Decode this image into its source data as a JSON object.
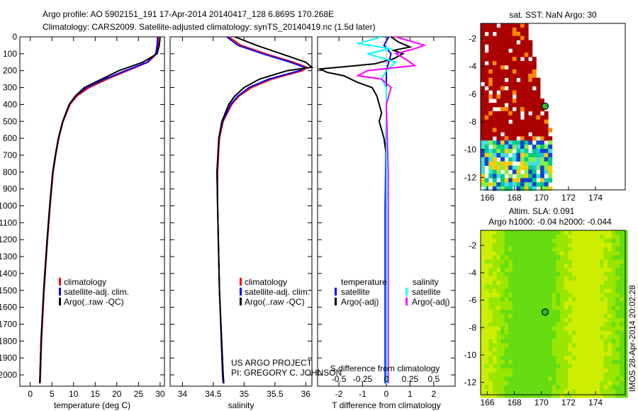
{
  "title_line1": "Argo profile: AO 5902151_191 17-Apr-2014 20140417_128 6.869S 170.268E",
  "title_line2": "Climatology: CARS2009. Satellite-adjusted climatology: synTS_20140419.nc (1.5d later)",
  "credit_line1": "US ARGO PROJECT",
  "credit_line2": "PI: GREGORY C. JOHNSON",
  "imos_stamp": "IMOS 28-Apr-2014 20:02:28",
  "colors": {
    "climatology": "#ff0000",
    "satellite": "#0000ff",
    "argo": "#000000",
    "s_satellite": "#00ffff",
    "s_argo": "#ff00ff"
  },
  "chart_data": [
    {
      "type": "line",
      "id": "temperature",
      "xlabel": "temperature (deg C)",
      "ylabel": "depth",
      "xlim": [
        -2.4,
        31
      ],
      "ylim": [
        2067,
        0
      ],
      "xticks": [
        0,
        5,
        10,
        15,
        20,
        25,
        30
      ],
      "yticks": [
        0,
        100,
        200,
        300,
        400,
        500,
        600,
        700,
        800,
        900,
        1000,
        1100,
        1200,
        1300,
        1400,
        1500,
        1600,
        1700,
        1800,
        1900,
        2000
      ],
      "legend": [
        "climatology",
        "satellite-adj. clim.",
        "Argo(..raw -QC)"
      ],
      "depth": [
        0,
        50,
        100,
        150,
        200,
        250,
        300,
        350,
        400,
        500,
        600,
        700,
        800,
        1000,
        1200,
        1500,
        1800,
        2050
      ],
      "series": [
        {
          "name": "climatology",
          "values": [
            29.6,
            29.5,
            29.2,
            27.2,
            22.5,
            17.8,
            13.6,
            10.8,
            9.2,
            7.6,
            6.6,
            5.9,
            5.3,
            4.6,
            4.0,
            3.2,
            2.6,
            2.3
          ]
        },
        {
          "name": "satellite-adj. clim.",
          "values": [
            29.4,
            29.3,
            29.0,
            27.0,
            22.0,
            17.2,
            13.0,
            10.5,
            9.0,
            7.5,
            6.5,
            5.8,
            5.2,
            4.5,
            3.9,
            3.1,
            2.5,
            2.2
          ]
        },
        {
          "name": "Argo(..raw -QC)",
          "values": [
            30.0,
            29.8,
            29.3,
            26.0,
            20.5,
            16.5,
            12.5,
            10.4,
            9.0,
            7.5,
            6.5,
            5.8,
            5.2,
            4.5,
            3.9,
            3.1,
            2.5,
            2.2
          ]
        }
      ]
    },
    {
      "type": "line",
      "id": "salinity",
      "xlabel": "salinity",
      "xlim": [
        33.8,
        36.1
      ],
      "ylim": [
        2067,
        0
      ],
      "xticks": [
        34,
        34.5,
        35,
        35.5,
        36
      ],
      "legend": [
        "climatology",
        "satellite-adj. clim.",
        "Argo(..raw -QC)"
      ],
      "depth": [
        0,
        50,
        100,
        150,
        180,
        200,
        250,
        300,
        350,
        400,
        500,
        600,
        800,
        1000,
        1500,
        2000,
        2050
      ],
      "series": [
        {
          "name": "climatology",
          "values": [
            34.75,
            34.95,
            35.35,
            35.8,
            36.02,
            35.95,
            35.45,
            35.12,
            34.92,
            34.8,
            34.66,
            34.6,
            34.57,
            34.57,
            34.6,
            34.66,
            34.67
          ]
        },
        {
          "name": "satellite-adj. clim.",
          "values": [
            34.72,
            34.9,
            35.3,
            35.75,
            35.98,
            35.9,
            35.4,
            35.08,
            34.9,
            34.78,
            34.65,
            34.59,
            34.56,
            34.57,
            34.6,
            34.65,
            34.66
          ]
        },
        {
          "name": "Argo(..raw -QC)",
          "values": [
            34.85,
            35.2,
            35.6,
            36.0,
            36.1,
            35.7,
            35.25,
            35.0,
            34.85,
            34.75,
            34.64,
            34.59,
            34.56,
            34.57,
            34.6,
            34.66,
            34.67
          ]
        }
      ]
    },
    {
      "type": "line",
      "id": "difference",
      "xlabel": "T difference from climatology",
      "x2label": "S difference from climatology",
      "xlim": [
        -2.9,
        2.9
      ],
      "ylim": [
        2067,
        0
      ],
      "xticks": [
        -2,
        -1,
        0,
        1,
        2
      ],
      "x2ticks": [
        -0.5,
        -0.25,
        0,
        0.25,
        0.5
      ],
      "s_to_t_scale": 4,
      "legend_headers": [
        "temperature",
        "salinity"
      ],
      "legend": [
        "satellite",
        "Argo(-adj)",
        "satellite",
        "Argo(-adj)"
      ],
      "series": [
        {
          "name": "temperature satellite",
          "variable": "T",
          "depth": [
            0,
            50,
            100,
            150,
            200,
            300,
            500,
            1000,
            2050
          ],
          "values": [
            0.1,
            -0.1,
            0.2,
            0.1,
            0,
            0,
            0,
            -0.05,
            -0.05
          ]
        },
        {
          "name": "temperature Argo(-adj)",
          "variable": "T",
          "depth": [
            0,
            30,
            60,
            80,
            100,
            130,
            160,
            190,
            210,
            230,
            270,
            300,
            350,
            400,
            450,
            500,
            550,
            600,
            700,
            800,
            2050
          ],
          "values": [
            0.2,
            0.5,
            1.0,
            0.3,
            0.7,
            0.3,
            -0.5,
            -2.8,
            -2.5,
            -1.8,
            -1.2,
            -0.6,
            -0.4,
            -0.3,
            -0.2,
            -0.3,
            -0.2,
            -0.1,
            0,
            0,
            0
          ]
        },
        {
          "name": "salinity satellite",
          "variable": "S",
          "depth": [
            0,
            40,
            70,
            100,
            150,
            200,
            250,
            300,
            2050
          ],
          "values": [
            -0.05,
            -0.3,
            0.05,
            -0.2,
            0.1,
            0,
            -0.05,
            0,
            0
          ]
        },
        {
          "name": "salinity Argo(-adj)",
          "variable": "S",
          "depth": [
            0,
            50,
            70,
            100,
            130,
            170,
            200,
            230,
            250,
            300,
            400,
            800,
            2050
          ],
          "values": [
            0.1,
            0.4,
            0.3,
            0.1,
            0.2,
            0.3,
            -0.2,
            -0.3,
            -0.05,
            0.05,
            0,
            0.02,
            0.02
          ]
        }
      ]
    },
    {
      "type": "heatmap",
      "id": "sst_map",
      "title": "sat. SST: NaN Argo: 30",
      "xlim": [
        165.5,
        176.2
      ],
      "ylim": [
        -12.9,
        -0.9
      ],
      "xticks": [
        166,
        168,
        170,
        172,
        174
      ],
      "yticks": [
        -2,
        -4,
        -6,
        -8,
        -10,
        -12
      ],
      "marker": {
        "lon": 170.268,
        "lat": -6.869
      }
    },
    {
      "type": "heatmap",
      "id": "sla_map",
      "title": "Altim. SLA: 0.091",
      "subtitle": "Argo h1000: -0.04 h2000: -0.044",
      "xlim": [
        165.5,
        176.2
      ],
      "ylim": [
        -12.9,
        -0.9
      ],
      "xticks": [
        166,
        168,
        170,
        172,
        174
      ],
      "yticks": [
        -2,
        -4,
        -6,
        -8,
        -10,
        -12
      ],
      "marker": {
        "lon": 170.268,
        "lat": -6.869
      }
    }
  ]
}
